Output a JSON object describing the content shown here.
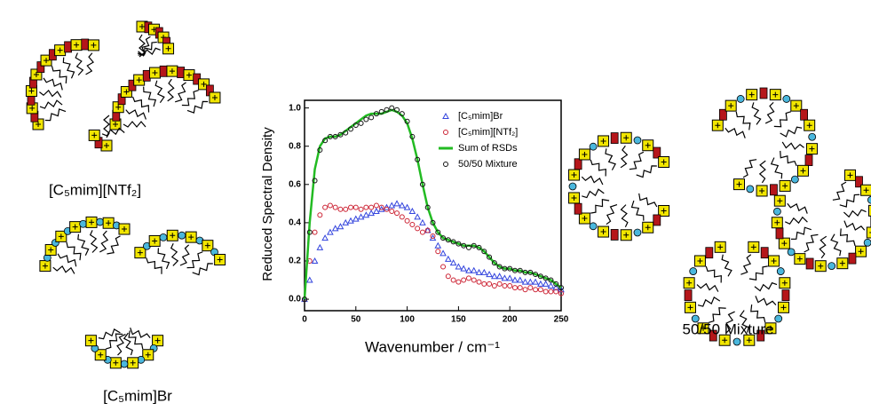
{
  "diagram_labels": [
    "[C₅mim][NTf₂]",
    "[C₅mim]Br",
    "50/50 Mixture"
  ],
  "chart_data": {
    "type": "scatter",
    "x_label": "Wavenumber / cm⁻¹",
    "y_label": "Reduced Spectral Density",
    "xlim": [
      0,
      250
    ],
    "xticks": [
      0,
      50,
      100,
      150,
      200,
      250
    ],
    "ylim": [
      -0.06,
      1.04
    ],
    "yticks": [
      {
        "value": 0,
        "label": "0.0"
      },
      0.2,
      0.4,
      0.6,
      0.8,
      {
        "value": 1,
        "label": "1.0"
      }
    ],
    "legend": "top-right",
    "x": [
      0,
      5,
      10,
      15,
      20,
      25,
      30,
      35,
      40,
      45,
      50,
      55,
      60,
      65,
      70,
      75,
      80,
      85,
      90,
      95,
      100,
      105,
      110,
      115,
      120,
      125,
      130,
      135,
      140,
      145,
      150,
      155,
      160,
      165,
      170,
      175,
      180,
      185,
      190,
      195,
      200,
      205,
      210,
      215,
      220,
      225,
      230,
      235,
      240,
      245,
      250
    ],
    "series": [
      {
        "name": "[C₅mim]Br",
        "color": "#3344dd",
        "marker": "triangle",
        "values": [
          0,
          0.1,
          0.2,
          0.27,
          0.32,
          0.35,
          0.37,
          0.38,
          0.4,
          0.41,
          0.42,
          0.43,
          0.44,
          0.45,
          0.46,
          0.47,
          0.48,
          0.49,
          0.5,
          0.49,
          0.48,
          0.46,
          0.43,
          0.4,
          0.36,
          0.32,
          0.28,
          0.24,
          0.21,
          0.19,
          0.17,
          0.16,
          0.15,
          0.15,
          0.14,
          0.14,
          0.13,
          0.12,
          0.12,
          0.11,
          0.11,
          0.1,
          0.1,
          0.09,
          0.09,
          0.09,
          0.08,
          0.08,
          0.07,
          0.06,
          0.05
        ]
      },
      {
        "name": "[C₅mim][NTf₂]",
        "color": "#cc2233",
        "marker": "circle",
        "values": [
          0,
          0.2,
          0.35,
          0.44,
          0.48,
          0.49,
          0.48,
          0.47,
          0.47,
          0.48,
          0.48,
          0.47,
          0.48,
          0.48,
          0.49,
          0.48,
          0.47,
          0.46,
          0.45,
          0.43,
          0.41,
          0.39,
          0.37,
          0.35,
          0.36,
          0.33,
          0.25,
          0.17,
          0.12,
          0.1,
          0.09,
          0.1,
          0.11,
          0.1,
          0.09,
          0.08,
          0.08,
          0.07,
          0.08,
          0.07,
          0.07,
          0.06,
          0.06,
          0.05,
          0.06,
          0.05,
          0.05,
          0.04,
          0.04,
          0.04,
          0.03
        ]
      },
      {
        "name": "Sum of RSDs",
        "color": "#22bb22",
        "marker": "line",
        "values": [
          0,
          0.4,
          0.68,
          0.8,
          0.84,
          0.85,
          0.85,
          0.86,
          0.88,
          0.9,
          0.92,
          0.94,
          0.96,
          0.97,
          0.97,
          0.97,
          0.98,
          0.99,
          0.98,
          0.96,
          0.92,
          0.84,
          0.73,
          0.6,
          0.48,
          0.4,
          0.35,
          0.32,
          0.31,
          0.3,
          0.29,
          0.28,
          0.28,
          0.28,
          0.27,
          0.25,
          0.22,
          0.19,
          0.17,
          0.16,
          0.16,
          0.15,
          0.15,
          0.14,
          0.14,
          0.13,
          0.12,
          0.11,
          0.1,
          0.08,
          0.06
        ]
      },
      {
        "name": "50/50 Mixture",
        "color": "#111111",
        "marker": "circle",
        "values": [
          0,
          0.35,
          0.62,
          0.78,
          0.83,
          0.85,
          0.85,
          0.86,
          0.87,
          0.89,
          0.91,
          0.92,
          0.94,
          0.95,
          0.97,
          0.98,
          0.99,
          1.0,
          0.99,
          0.97,
          0.93,
          0.85,
          0.73,
          0.6,
          0.48,
          0.4,
          0.35,
          0.32,
          0.31,
          0.3,
          0.29,
          0.28,
          0.27,
          0.28,
          0.27,
          0.25,
          0.22,
          0.19,
          0.17,
          0.16,
          0.16,
          0.15,
          0.15,
          0.14,
          0.14,
          0.13,
          0.12,
          0.11,
          0.1,
          0.08,
          0.06
        ]
      }
    ]
  }
}
